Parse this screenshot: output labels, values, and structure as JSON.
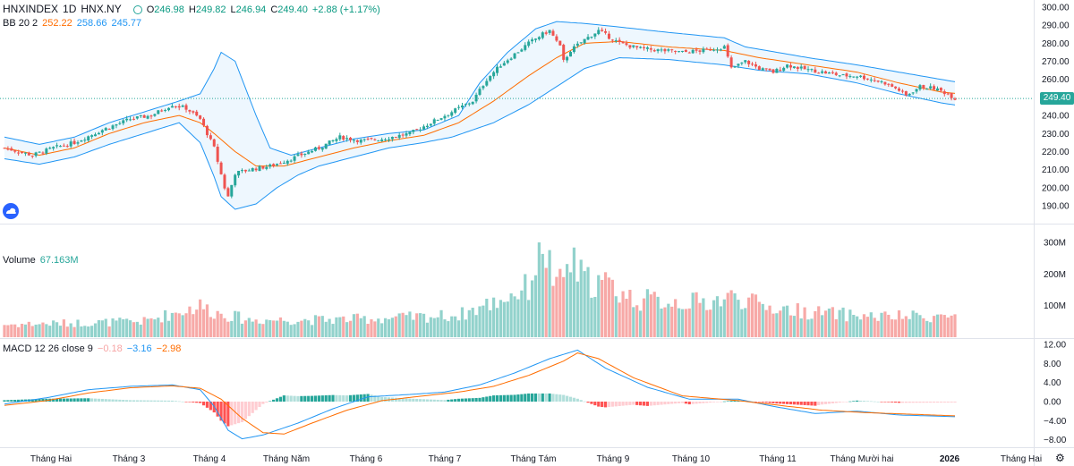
{
  "header": {
    "symbol": "HNXINDEX",
    "interval": "1D",
    "exchange": "HNX.NY",
    "open_label": "O",
    "open": "246.98",
    "high_label": "H",
    "high": "249.82",
    "low_label": "L",
    "low": "246.94",
    "close_label": "C",
    "close": "249.40",
    "change": "+2.88 (+1.17%)"
  },
  "bb_legend": {
    "label": "BB 20 2",
    "basis": "252.22",
    "upper": "258.66",
    "lower": "245.77"
  },
  "volume_legend": {
    "label": "Volume",
    "value": "67.163M"
  },
  "macd_legend": {
    "label": "MACD 12 26 close 9",
    "hist": "−0.18",
    "macd": "−3.16",
    "signal": "−2.98"
  },
  "last_price_tag": "249.40",
  "colors": {
    "up": "#26a69a",
    "down": "#ef5350",
    "bb_band": "#2196f3",
    "bb_basis": "#ff6d00",
    "macd_line": "#2196f3",
    "signal_line": "#ff6d00"
  },
  "icons": {
    "logo": "tradingview-cloud-icon",
    "settings": "gear-icon"
  },
  "chart_data": [
    {
      "type": "candlestick",
      "title": "HNXINDEX",
      "y_ticks": [
        "300.00",
        "290.00",
        "280.00",
        "270.00",
        "260.00",
        "250.00",
        "240.00",
        "230.00",
        "220.00",
        "210.00",
        "200.00",
        "190.00"
      ],
      "ylim": [
        185,
        301
      ],
      "x_ticks": [
        "Tháng Hai",
        "Tháng 3",
        "Tháng 4",
        "Tháng Năm",
        "Tháng 6",
        "Tháng 7",
        "Tháng Tám",
        "Tháng 9",
        "Tháng 10",
        "Tháng 11",
        "Tháng Mười hai",
        "2026",
        "Tháng Hai"
      ],
      "close_path": [
        [
          0,
          222
        ],
        [
          8,
          218
        ],
        [
          14,
          222
        ],
        [
          20,
          225
        ],
        [
          28,
          232
        ],
        [
          36,
          238
        ],
        [
          42,
          240
        ],
        [
          48,
          246
        ],
        [
          52,
          244
        ],
        [
          56,
          238
        ],
        [
          60,
          222
        ],
        [
          63,
          200
        ],
        [
          64,
          195
        ],
        [
          66,
          208
        ],
        [
          70,
          210
        ],
        [
          76,
          212
        ],
        [
          82,
          216
        ],
        [
          90,
          222
        ],
        [
          96,
          228
        ],
        [
          102,
          226
        ],
        [
          108,
          227
        ],
        [
          116,
          230
        ],
        [
          122,
          236
        ],
        [
          128,
          242
        ],
        [
          134,
          248
        ],
        [
          138,
          260
        ],
        [
          142,
          268
        ],
        [
          146,
          274
        ],
        [
          150,
          280
        ],
        [
          154,
          285
        ],
        [
          156,
          287
        ],
        [
          159,
          278
        ],
        [
          160,
          270
        ],
        [
          162,
          276
        ],
        [
          166,
          282
        ],
        [
          170,
          287
        ],
        [
          176,
          280
        ],
        [
          182,
          277
        ],
        [
          188,
          276
        ],
        [
          194,
          275
        ],
        [
          200,
          276
        ],
        [
          206,
          278
        ],
        [
          208,
          266
        ],
        [
          212,
          270
        ],
        [
          216,
          266
        ],
        [
          220,
          264
        ],
        [
          224,
          268
        ],
        [
          228,
          266
        ],
        [
          234,
          264
        ],
        [
          240,
          262
        ],
        [
          244,
          262
        ],
        [
          248,
          260
        ],
        [
          252,
          258
        ],
        [
          256,
          254
        ],
        [
          258,
          251
        ],
        [
          262,
          256
        ],
        [
          266,
          255
        ],
        [
          270,
          252
        ],
        [
          272,
          249.4
        ]
      ],
      "last_close": 249.4
    },
    {
      "type": "line",
      "title": "BB 20 2",
      "series": [
        {
          "name": "basis",
          "values_at": [
            [
              0,
              222
            ],
            [
              10,
              218
            ],
            [
              20,
              222
            ],
            [
              30,
              230
            ],
            [
              40,
              236
            ],
            [
              50,
              240
            ],
            [
              56,
              236
            ],
            [
              60,
              230
            ],
            [
              66,
              220
            ],
            [
              72,
              212
            ],
            [
              80,
              212
            ],
            [
              90,
              217
            ],
            [
              100,
              222
            ],
            [
              110,
              226
            ],
            [
              120,
              229
            ],
            [
              130,
              236
            ],
            [
              140,
              248
            ],
            [
              150,
              262
            ],
            [
              158,
              272
            ],
            [
              166,
              280
            ],
            [
              176,
              281
            ],
            [
              190,
              278
            ],
            [
              206,
              276
            ],
            [
              216,
              272
            ],
            [
              230,
              268
            ],
            [
              244,
              264
            ],
            [
              256,
              258
            ],
            [
              268,
              253
            ],
            [
              272,
              252.22
            ]
          ]
        },
        {
          "name": "upper",
          "values_at": [
            [
              0,
              228
            ],
            [
              10,
              224
            ],
            [
              20,
              228
            ],
            [
              30,
              236
            ],
            [
              40,
              242
            ],
            [
              50,
              248
            ],
            [
              56,
              252
            ],
            [
              60,
              266
            ],
            [
              62,
              275
            ],
            [
              66,
              270
            ],
            [
              72,
              240
            ],
            [
              76,
              222
            ],
            [
              82,
              218
            ],
            [
              90,
              222
            ],
            [
              100,
              227
            ],
            [
              110,
              230
            ],
            [
              120,
              232
            ],
            [
              130,
              240
            ],
            [
              136,
              258
            ],
            [
              144,
              275
            ],
            [
              152,
              288
            ],
            [
              158,
              292
            ],
            [
              166,
              291
            ],
            [
              176,
              289
            ],
            [
              190,
              286
            ],
            [
              206,
              283
            ],
            [
              212,
              278
            ],
            [
              230,
              272
            ],
            [
              244,
              268
            ],
            [
              256,
              264
            ],
            [
              268,
              260
            ],
            [
              272,
              258.66
            ]
          ]
        },
        {
          "name": "lower",
          "values_at": [
            [
              0,
              216
            ],
            [
              10,
              213
            ],
            [
              20,
              217
            ],
            [
              30,
              224
            ],
            [
              40,
              230
            ],
            [
              50,
              236
            ],
            [
              56,
              225
            ],
            [
              60,
              206
            ],
            [
              62,
              195
            ],
            [
              66,
              188
            ],
            [
              72,
              191
            ],
            [
              78,
              200
            ],
            [
              84,
              207
            ],
            [
              90,
              212
            ],
            [
              100,
              217
            ],
            [
              110,
              222
            ],
            [
              120,
              225
            ],
            [
              128,
              228
            ],
            [
              140,
              236
            ],
            [
              150,
              246
            ],
            [
              158,
              256
            ],
            [
              166,
              266
            ],
            [
              176,
              272
            ],
            [
              190,
              271
            ],
            [
              206,
              268
            ],
            [
              216,
              265
            ],
            [
              230,
              263
            ],
            [
              244,
              258
            ],
            [
              256,
              252
            ],
            [
              268,
              247
            ],
            [
              272,
              245.77
            ]
          ]
        }
      ]
    },
    {
      "type": "bar",
      "title": "Volume",
      "y_ticks": [
        "300M",
        "200M",
        "100M"
      ],
      "ylim": [
        0,
        310
      ],
      "last_value": "67.163M",
      "approx_volume_path_M": [
        [
          0,
          40
        ],
        [
          20,
          45
        ],
        [
          40,
          50
        ],
        [
          56,
          100
        ],
        [
          60,
          80
        ],
        [
          70,
          55
        ],
        [
          90,
          55
        ],
        [
          110,
          60
        ],
        [
          130,
          70
        ],
        [
          140,
          110
        ],
        [
          150,
          160
        ],
        [
          154,
          310
        ],
        [
          158,
          150
        ],
        [
          162,
          240
        ],
        [
          166,
          180
        ],
        [
          172,
          170
        ],
        [
          180,
          120
        ],
        [
          200,
          110
        ],
        [
          210,
          130
        ],
        [
          216,
          100
        ],
        [
          230,
          80
        ],
        [
          250,
          65
        ],
        [
          272,
          67
        ]
      ]
    },
    {
      "type": "line",
      "title": "MACD 12 26 close 9",
      "y_ticks": [
        "12.00",
        "8.00",
        "4.00",
        "0.00",
        "−4.00",
        "−8.00"
      ],
      "ylim": [
        -9,
        12.5
      ],
      "series": [
        {
          "name": "macd",
          "values_at": [
            [
              0,
              -0.5
            ],
            [
              12,
              0.8
            ],
            [
              24,
              2.5
            ],
            [
              36,
              3.2
            ],
            [
              48,
              3.5
            ],
            [
              56,
              2.5
            ],
            [
              60,
              -1
            ],
            [
              64,
              -6
            ],
            [
              68,
              -7.8
            ],
            [
              74,
              -7
            ],
            [
              84,
              -4.5
            ],
            [
              94,
              -1.5
            ],
            [
              104,
              1
            ],
            [
              116,
              1.5
            ],
            [
              126,
              2
            ],
            [
              136,
              3.5
            ],
            [
              146,
              6
            ],
            [
              156,
              9
            ],
            [
              164,
              10.8
            ],
            [
              172,
              7
            ],
            [
              184,
              3
            ],
            [
              196,
              0.5
            ],
            [
              210,
              0.5
            ],
            [
              220,
              -1
            ],
            [
              232,
              -2.5
            ],
            [
              244,
              -2
            ],
            [
              256,
              -2.8
            ],
            [
              272,
              -3.16
            ]
          ]
        },
        {
          "name": "signal",
          "values_at": [
            [
              0,
              -0.8
            ],
            [
              12,
              0.2
            ],
            [
              24,
              1.8
            ],
            [
              36,
              2.9
            ],
            [
              48,
              3.3
            ],
            [
              56,
              2.8
            ],
            [
              62,
              0.5
            ],
            [
              68,
              -3.5
            ],
            [
              74,
              -6.5
            ],
            [
              80,
              -6.8
            ],
            [
              88,
              -4.5
            ],
            [
              98,
              -1.8
            ],
            [
              108,
              0.2
            ],
            [
              120,
              1.2
            ],
            [
              130,
              2
            ],
            [
              140,
              3.2
            ],
            [
              150,
              5.5
            ],
            [
              160,
              8.5
            ],
            [
              164,
              10.2
            ],
            [
              170,
              9
            ],
            [
              180,
              5
            ],
            [
              194,
              1.2
            ],
            [
              210,
              0.2
            ],
            [
              222,
              -0.8
            ],
            [
              234,
              -1.8
            ],
            [
              246,
              -2.3
            ],
            [
              258,
              -2.6
            ],
            [
              272,
              -2.98
            ]
          ]
        }
      ]
    }
  ]
}
